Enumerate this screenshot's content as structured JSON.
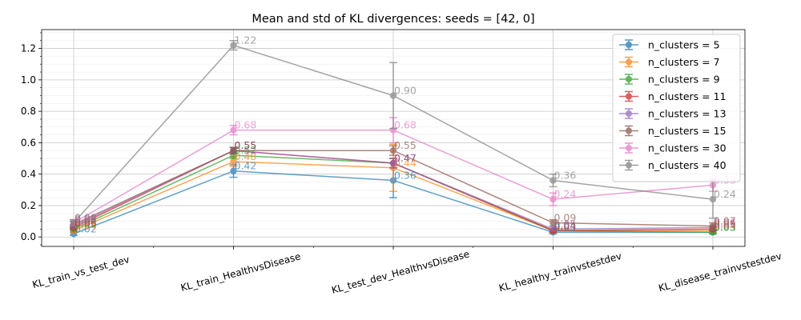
{
  "chart_data": {
    "type": "line",
    "title": "Mean and std of KL divergences: seeds = [42, 0]",
    "xlabel": "",
    "ylabel": "",
    "categories": [
      "KL_train_vs_test_dev",
      "KL_train_HealthvsDisease",
      "KL_test_dev_HealthvsDisease",
      "KL_healthy_trainvstestdev",
      "KL_disease_trainvstestdev"
    ],
    "ylim": [
      -0.06,
      1.32
    ],
    "yticks": [
      0.0,
      0.2,
      0.4,
      0.6,
      0.8,
      1.0,
      1.2
    ],
    "ytick_labels": [
      "0.0",
      "0.2",
      "0.4",
      "0.6",
      "0.8",
      "1.0",
      "1.2"
    ],
    "grid": true,
    "legend_position": "top-right",
    "series": [
      {
        "name": "n_clusters = 5",
        "color": "#1f77b4",
        "values": [
          0.02,
          0.42,
          0.36,
          0.03,
          0.03
        ],
        "std": [
          0.01,
          0.04,
          0.11,
          0.01,
          0.01
        ],
        "labels": [
          "0.02",
          "0.42",
          "0.36",
          "0.03",
          "0.03"
        ]
      },
      {
        "name": "n_clusters = 7",
        "color": "#ff7f0e",
        "values": [
          0.04,
          0.48,
          0.44,
          0.04,
          0.04
        ],
        "std": [
          0.01,
          0.03,
          0.15,
          0.01,
          0.01
        ],
        "labels": [
          "0.04",
          "0.48",
          "0.44",
          "0.04",
          "0.04"
        ]
      },
      {
        "name": "n_clusters = 9",
        "color": "#2ca02c",
        "values": [
          0.05,
          0.52,
          0.47,
          0.04,
          0.03
        ],
        "std": [
          0.01,
          0.02,
          0.03,
          0.01,
          0.01
        ],
        "labels": [
          "0.05",
          "0.52",
          "0.47",
          "0.04",
          "0.03"
        ]
      },
      {
        "name": "n_clusters = 11",
        "color": "#d62728",
        "values": [
          0.06,
          0.55,
          0.47,
          0.04,
          0.05
        ],
        "std": [
          0.01,
          0.02,
          0.03,
          0.01,
          0.01
        ],
        "labels": [
          "0.06",
          "0.55",
          "0.47",
          "0.04",
          "0.05"
        ]
      },
      {
        "name": "n_clusters = 13",
        "color": "#9467bd",
        "values": [
          0.07,
          0.55,
          0.47,
          0.05,
          0.06
        ],
        "std": [
          0.01,
          0.02,
          0.03,
          0.01,
          0.01
        ],
        "labels": [
          "0.07",
          "0.55",
          "0.47",
          "0.05",
          "0.06"
        ]
      },
      {
        "name": "n_clusters = 15",
        "color": "#8c564b",
        "values": [
          0.08,
          0.55,
          0.55,
          0.09,
          0.07
        ],
        "std": [
          0.02,
          0.02,
          0.03,
          0.02,
          0.02
        ],
        "labels": [
          "0.08",
          "0.55",
          "0.55",
          "0.09",
          "0.07"
        ]
      },
      {
        "name": "n_clusters = 30",
        "color": "#e377c2",
        "values": [
          0.09,
          0.68,
          0.68,
          0.24,
          0.33
        ],
        "std": [
          0.02,
          0.03,
          0.08,
          0.04,
          0.04
        ],
        "labels": [
          "0.09",
          "0.68",
          "0.68",
          "0.24",
          "0.33"
        ]
      },
      {
        "name": "n_clusters = 40",
        "color": "#7f7f7f",
        "values": [
          0.09,
          1.22,
          0.9,
          0.36,
          0.24
        ],
        "std": [
          0.02,
          0.03,
          0.21,
          0.04,
          0.12
        ],
        "labels": [
          "0.09",
          "1.22",
          "0.90",
          "0.36",
          "0.24"
        ]
      }
    ]
  }
}
